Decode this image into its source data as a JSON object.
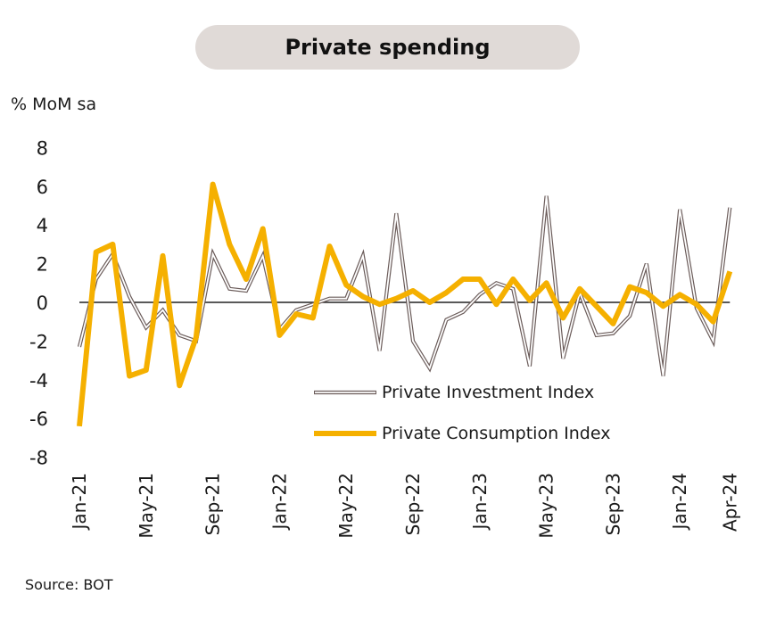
{
  "title": "Private spending",
  "unit_label": "% MoM sa",
  "source": "Source: BOT",
  "colors": {
    "investment_outer": "#6b5c5a",
    "investment_inner": "#ffffff",
    "consumption": "#f5b000",
    "zero_line": "#222222",
    "title_bg": "#e0dad7"
  },
  "chart_data": {
    "type": "line",
    "ylim": [
      -8,
      8
    ],
    "yticks": [
      -8,
      -6,
      -4,
      -2,
      0,
      2,
      4,
      6,
      8
    ],
    "grid": false,
    "legend_position": "lower-right",
    "x": [
      "Jan-21",
      "Feb-21",
      "Mar-21",
      "Apr-21",
      "May-21",
      "Jun-21",
      "Jul-21",
      "Aug-21",
      "Sep-21",
      "Oct-21",
      "Nov-21",
      "Dec-21",
      "Jan-22",
      "Feb-22",
      "Mar-22",
      "Apr-22",
      "May-22",
      "Jun-22",
      "Jul-22",
      "Aug-22",
      "Sep-22",
      "Oct-22",
      "Nov-22",
      "Dec-22",
      "Jan-23",
      "Feb-23",
      "Mar-23",
      "Apr-23",
      "May-23",
      "Jun-23",
      "Jul-23",
      "Aug-23",
      "Sep-23",
      "Oct-23",
      "Nov-23",
      "Dec-23",
      "Jan-24",
      "Feb-24",
      "Mar-24",
      "Apr-24"
    ],
    "xtick_labels": [
      "Jan-21",
      "May-21",
      "Sep-21",
      "Jan-22",
      "May-22",
      "Sep-22",
      "Jan-23",
      "May-23",
      "Sep-23",
      "Jan-24",
      "Apr-24"
    ],
    "series": [
      {
        "name": "Private Investment Index",
        "values": [
          -2.3,
          1.2,
          2.5,
          0.3,
          -1.3,
          -0.4,
          -1.7,
          -2.0,
          2.5,
          0.7,
          0.6,
          2.4,
          -1.4,
          -0.4,
          -0.1,
          0.2,
          0.2,
          2.4,
          -2.5,
          4.6,
          -2.0,
          -3.4,
          -0.9,
          -0.5,
          0.4,
          1.0,
          0.7,
          -3.3,
          5.5,
          -2.9,
          0.5,
          -1.7,
          -1.6,
          -0.7,
          2.0,
          -3.8,
          4.8,
          -0.3,
          -2.0,
          4.9
        ],
        "style": "hollow"
      },
      {
        "name": "Private Consumption Index",
        "values": [
          -6.4,
          2.6,
          3.0,
          -3.8,
          -3.5,
          2.4,
          -4.3,
          -1.8,
          6.1,
          3.0,
          1.2,
          3.8,
          -1.7,
          -0.6,
          -0.8,
          2.9,
          0.9,
          0.3,
          -0.1,
          0.2,
          0.6,
          0.0,
          0.5,
          1.2,
          1.2,
          -0.1,
          1.2,
          0.1,
          1.0,
          -0.8,
          0.7,
          -0.2,
          -1.1,
          0.8,
          0.5,
          -0.2,
          0.4,
          -0.1,
          -1.0,
          1.6
        ],
        "style": "solid"
      }
    ]
  }
}
